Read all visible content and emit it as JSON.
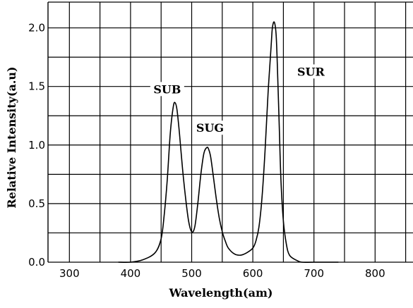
{
  "chart_data": {
    "type": "line",
    "title": "",
    "xlabel": "Wavelength(am)",
    "ylabel": "Relative Intensity(a.u)",
    "xlim": [
      265,
      862
    ],
    "ylim": [
      0,
      2.22
    ],
    "x_ticks": [
      300,
      400,
      500,
      600,
      700,
      800
    ],
    "y_ticks": [
      0.0,
      0.5,
      1.0,
      1.5,
      2.0
    ],
    "y_tick_labels": [
      "0.0",
      "0.5",
      "1.0",
      "1.5",
      "2.0"
    ],
    "grid": true,
    "grid_x_step": 50,
    "grid_y_step": 0.25,
    "series": [
      {
        "x": [
          380,
          400,
          420,
          440,
          450,
          455,
          460,
          465,
          470,
          473,
          476,
          480,
          485,
          490,
          495,
          500,
          505,
          510,
          515,
          520,
          525,
          528,
          531,
          535,
          540,
          545,
          550,
          555,
          560,
          570,
          580,
          590,
          600,
          605,
          610,
          615,
          620,
          625,
          630,
          632,
          635,
          638,
          640,
          643,
          646,
          650,
          655,
          660,
          670,
          680,
          700,
          740
        ],
        "values": [
          0.0,
          0.0,
          0.02,
          0.08,
          0.2,
          0.4,
          0.7,
          1.1,
          1.33,
          1.36,
          1.3,
          1.1,
          0.8,
          0.55,
          0.35,
          0.26,
          0.3,
          0.5,
          0.75,
          0.93,
          0.98,
          0.96,
          0.9,
          0.75,
          0.55,
          0.38,
          0.26,
          0.18,
          0.12,
          0.07,
          0.06,
          0.08,
          0.12,
          0.18,
          0.3,
          0.55,
          0.95,
          1.45,
          1.85,
          2.0,
          2.05,
          1.95,
          1.7,
          1.2,
          0.7,
          0.35,
          0.15,
          0.06,
          0.02,
          0.0,
          0.0,
          0.0
        ]
      }
    ],
    "annotations": [
      {
        "text": "SUB",
        "x": 460,
        "y": 1.46
      },
      {
        "text": "SUG",
        "x": 530,
        "y": 1.13
      },
      {
        "text": "SUR",
        "x": 695,
        "y": 1.61
      }
    ],
    "line_color": "#000000",
    "grid_color": "#000000"
  }
}
